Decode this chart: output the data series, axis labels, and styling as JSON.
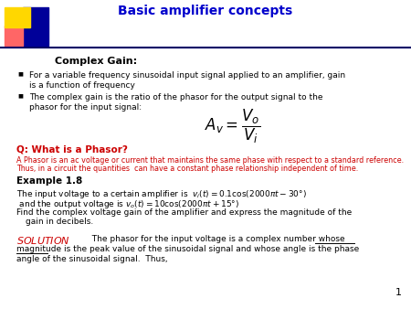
{
  "title": "Basic amplifier concepts",
  "title_color": "#0000CC",
  "bg_color": "#FFFFFF",
  "slide_number": "1",
  "complex_gain_heading": "Complex Gain:",
  "q_heading": "Q: What is a Phasor?",
  "q_heading_color": "#CC0000",
  "q_answer_line1": "A Phasor is an ac voltage or current that maintains the same phase with respect to a standard reference.",
  "q_answer_line2": "Thus, in a circuit the quantities  can have a constant phase relationship independent of time.",
  "q_answer_color": "#CC0000",
  "example_heading": "Example 1.8",
  "bullet1_line1": "For a variable frequency sinusoidal input signal applied to an amplifier, gain",
  "bullet1_line2": "is a function of frequency",
  "bullet2_line1": "The complex gain is the ratio of the phasor for the output signal to the",
  "bullet2_line2": "phasor for the input signal:",
  "sol_color": "#CC0000",
  "yellow": "#FFD700",
  "red_sq": "#FF6666",
  "blue_sq": "#000099",
  "line_color": "#000066"
}
